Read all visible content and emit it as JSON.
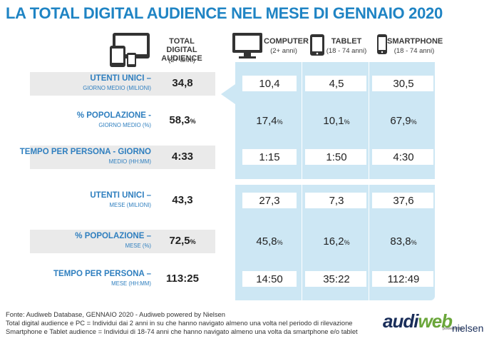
{
  "title": "LA TOTAL DIGITAL AUDIENCE NEL MESE DI GENNAIO 2020",
  "colors": {
    "title": "#1f84c4",
    "label": "#2f7fbf",
    "panel": "#cde7f4",
    "logo_dark": "#1a2e5a",
    "logo_green": "#6aa63a"
  },
  "header": {
    "total": {
      "label": "TOTAL DIGITAL AUDIENCE",
      "sub": "(2+ anni)",
      "icon": "multi-device-icon"
    },
    "computer": {
      "label": "COMPUTER",
      "sub": "(2+ anni)",
      "icon": "monitor-icon"
    },
    "tablet": {
      "label": "TABLET",
      "sub": "(18 - 74 anni)",
      "icon": "tablet-icon"
    },
    "smartphone": {
      "label": "SMARTPHONE",
      "sub": "(18 - 74 anni)",
      "icon": "smartphone-icon"
    }
  },
  "rows": [
    {
      "label": "UTENTI UNICI –",
      "sub": "GIORNO MEDIO (MILIONI)",
      "total": "34,8",
      "computer": "10,4",
      "tablet": "4,5",
      "smartphone": "30,5"
    },
    {
      "label": "% POPOLAZIONE -",
      "sub": "GIORNO MEDIO (%)",
      "total": "58,3",
      "computer": "17,4",
      "tablet": "10,1",
      "smartphone": "67,9"
    },
    {
      "label": "TEMPO PER PERSONA - GIORNO",
      "sub": "MEDIO (HH:MM)",
      "total": "4:33",
      "computer": "1:15",
      "tablet": "1:50",
      "smartphone": "4:30"
    },
    {
      "label": "UTENTI UNICI –",
      "sub": "MESE (MILIONI)",
      "total": "43,3",
      "computer": "27,3",
      "tablet": "7,3",
      "smartphone": "37,6"
    },
    {
      "label": "% POPOLAZIONE –",
      "sub": "MESE (%)",
      "total": "72,5",
      "computer": "45,8",
      "tablet": "16,2",
      "smartphone": "83,8"
    },
    {
      "label": "TEMPO PER PERSONA –",
      "sub": "MESE (HH:MM)",
      "total": "113:25",
      "computer": "14:50",
      "tablet": "35:22",
      "smartphone": "112:49"
    }
  ],
  "pct_symbol": "%",
  "footer": [
    "Fonte: Audiweb Database, GENNAIO 2020 - Audiweb powered by Nielsen",
    "Total digital audience e PC = Individui dai 2 anni in su che hanno navigato almeno una volta nel periodo di rilevazione",
    "Smartphone e Tablet audience = Individui di 18-74 anni che hanno navigato almeno una volta da smartphone e/o tablet"
  ],
  "logo": {
    "aud": "aud",
    "i": "i",
    "web": "web",
    "powered": "powered by",
    "nielsen": "nielsen"
  }
}
